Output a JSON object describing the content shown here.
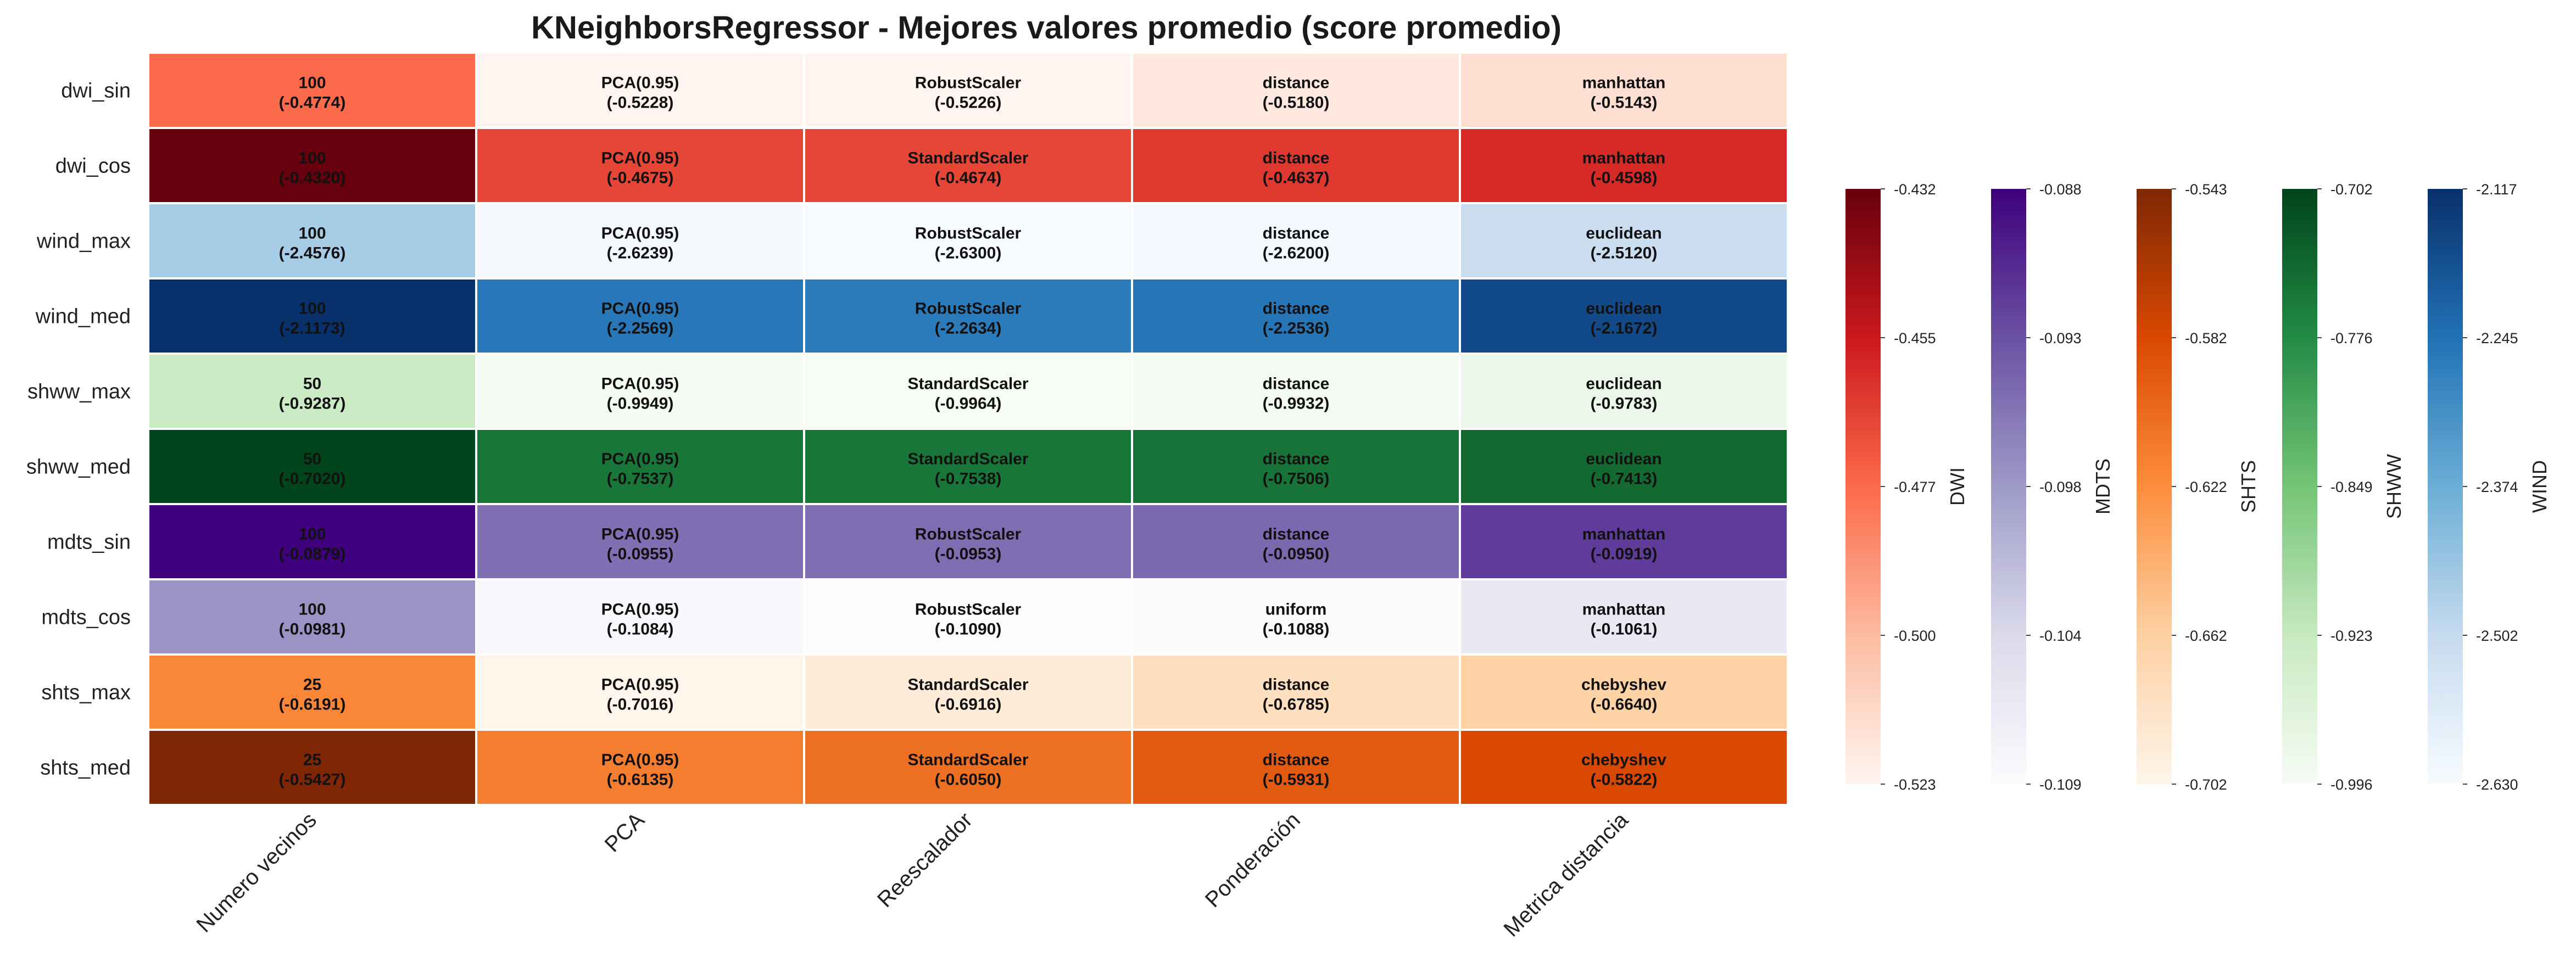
{
  "chart_data": {
    "type": "heatmap",
    "title": "KNeighborsRegressor - Mejores valores promedio (score promedio)",
    "columns": [
      "Numero vecinos",
      "PCA",
      "Reescalador",
      "Ponderación",
      "Metrica distancia"
    ],
    "rows": [
      {
        "label": "dwi_sin",
        "group": "DWI",
        "cells": [
          {
            "value": "100",
            "score": "(-0.4774)"
          },
          {
            "value": "PCA(0.95)",
            "score": "(-0.5228)"
          },
          {
            "value": "RobustScaler",
            "score": "(-0.5226)"
          },
          {
            "value": "distance",
            "score": "(-0.5180)"
          },
          {
            "value": "manhattan",
            "score": "(-0.5143)"
          }
        ]
      },
      {
        "label": "dwi_cos",
        "group": "DWI",
        "cells": [
          {
            "value": "100",
            "score": "(-0.4320)"
          },
          {
            "value": "PCA(0.95)",
            "score": "(-0.4675)"
          },
          {
            "value": "StandardScaler",
            "score": "(-0.4674)"
          },
          {
            "value": "distance",
            "score": "(-0.4637)"
          },
          {
            "value": "manhattan",
            "score": "(-0.4598)"
          }
        ]
      },
      {
        "label": "wind_max",
        "group": "WIND",
        "cells": [
          {
            "value": "100",
            "score": "(-2.4576)"
          },
          {
            "value": "PCA(0.95)",
            "score": "(-2.6239)"
          },
          {
            "value": "RobustScaler",
            "score": "(-2.6300)"
          },
          {
            "value": "distance",
            "score": "(-2.6200)"
          },
          {
            "value": "euclidean",
            "score": "(-2.5120)"
          }
        ]
      },
      {
        "label": "wind_med",
        "group": "WIND",
        "cells": [
          {
            "value": "100",
            "score": "(-2.1173)"
          },
          {
            "value": "PCA(0.95)",
            "score": "(-2.2569)"
          },
          {
            "value": "RobustScaler",
            "score": "(-2.2634)"
          },
          {
            "value": "distance",
            "score": "(-2.2536)"
          },
          {
            "value": "euclidean",
            "score": "(-2.1672)"
          }
        ]
      },
      {
        "label": "shww_max",
        "group": "SHWW",
        "cells": [
          {
            "value": "50",
            "score": "(-0.9287)"
          },
          {
            "value": "PCA(0.95)",
            "score": "(-0.9949)"
          },
          {
            "value": "StandardScaler",
            "score": "(-0.9964)"
          },
          {
            "value": "distance",
            "score": "(-0.9932)"
          },
          {
            "value": "euclidean",
            "score": "(-0.9783)"
          }
        ]
      },
      {
        "label": "shww_med",
        "group": "SHWW",
        "cells": [
          {
            "value": "50",
            "score": "(-0.7020)"
          },
          {
            "value": "PCA(0.95)",
            "score": "(-0.7537)"
          },
          {
            "value": "StandardScaler",
            "score": "(-0.7538)"
          },
          {
            "value": "distance",
            "score": "(-0.7506)"
          },
          {
            "value": "euclidean",
            "score": "(-0.7413)"
          }
        ]
      },
      {
        "label": "mdts_sin",
        "group": "MDTS",
        "cells": [
          {
            "value": "100",
            "score": "(-0.0879)"
          },
          {
            "value": "PCA(0.95)",
            "score": "(-0.0955)"
          },
          {
            "value": "RobustScaler",
            "score": "(-0.0953)"
          },
          {
            "value": "distance",
            "score": "(-0.0950)"
          },
          {
            "value": "manhattan",
            "score": "(-0.0919)"
          }
        ]
      },
      {
        "label": "mdts_cos",
        "group": "MDTS",
        "cells": [
          {
            "value": "100",
            "score": "(-0.0981)"
          },
          {
            "value": "PCA(0.95)",
            "score": "(-0.1084)"
          },
          {
            "value": "RobustScaler",
            "score": "(-0.1090)"
          },
          {
            "value": "uniform",
            "score": "(-0.1088)"
          },
          {
            "value": "manhattan",
            "score": "(-0.1061)"
          }
        ]
      },
      {
        "label": "shts_max",
        "group": "SHTS",
        "cells": [
          {
            "value": "25",
            "score": "(-0.6191)"
          },
          {
            "value": "PCA(0.95)",
            "score": "(-0.7016)"
          },
          {
            "value": "StandardScaler",
            "score": "(-0.6916)"
          },
          {
            "value": "distance",
            "score": "(-0.6785)"
          },
          {
            "value": "chebyshev",
            "score": "(-0.6640)"
          }
        ]
      },
      {
        "label": "shts_med",
        "group": "SHTS",
        "cells": [
          {
            "value": "25",
            "score": "(-0.5427)"
          },
          {
            "value": "PCA(0.95)",
            "score": "(-0.6135)"
          },
          {
            "value": "StandardScaler",
            "score": "(-0.6050)"
          },
          {
            "value": "distance",
            "score": "(-0.5931)"
          },
          {
            "value": "chebyshev",
            "score": "(-0.5822)"
          }
        ]
      }
    ],
    "colorbars": [
      {
        "label": "DWI",
        "colormap": "Reds",
        "min": -0.523,
        "max": -0.432,
        "ticks": [
          "-0.432",
          "-0.455",
          "-0.477",
          "-0.500",
          "-0.523"
        ],
        "stops": [
          "#fff5f0",
          "#fcbba1",
          "#fb6a4a",
          "#cb181d",
          "#67000d"
        ]
      },
      {
        "label": "MDTS",
        "colormap": "Purples",
        "min": -0.109,
        "max": -0.088,
        "ticks": [
          "-0.088",
          "-0.093",
          "-0.098",
          "-0.104",
          "-0.109"
        ],
        "stops": [
          "#fcfbfd",
          "#dadaeb",
          "#9e9ac8",
          "#6a51a3",
          "#3f007d"
        ]
      },
      {
        "label": "SHTS",
        "colormap": "Oranges",
        "min": -0.702,
        "max": -0.543,
        "ticks": [
          "-0.543",
          "-0.582",
          "-0.622",
          "-0.662",
          "-0.702"
        ],
        "stops": [
          "#fff5eb",
          "#fdd0a2",
          "#fd8d3c",
          "#d94801",
          "#7f2704"
        ]
      },
      {
        "label": "SHWW",
        "colormap": "Greens",
        "min": -0.996,
        "max": -0.702,
        "ticks": [
          "-0.702",
          "-0.776",
          "-0.849",
          "-0.923",
          "-0.996"
        ],
        "stops": [
          "#f7fcf5",
          "#c7e9c0",
          "#74c476",
          "#238b45",
          "#00441b"
        ]
      },
      {
        "label": "WIND",
        "colormap": "Blues",
        "min": -2.63,
        "max": -2.117,
        "ticks": [
          "-2.117",
          "-2.245",
          "-2.374",
          "-2.502",
          "-2.630"
        ],
        "stops": [
          "#f7fbff",
          "#c6dbef",
          "#6baed6",
          "#2171b5",
          "#08306b"
        ]
      }
    ],
    "legend": "right",
    "grid": false
  }
}
